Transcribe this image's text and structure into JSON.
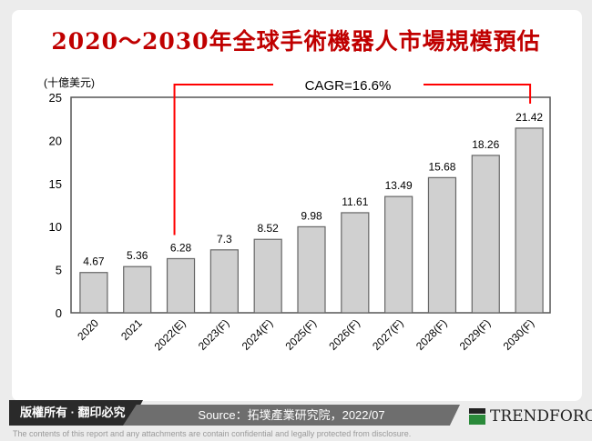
{
  "title": "2020～2030年全球手術機器人市場規模預估",
  "chart_data": {
    "type": "bar",
    "ylabel": "(十億美元)",
    "ylim": [
      0,
      25
    ],
    "yticks": [
      "0",
      "5",
      "10",
      "15",
      "20",
      "25"
    ],
    "categories": [
      "2020",
      "2021",
      "2022(E)",
      "2023(F)",
      "2024(F)",
      "2025(F)",
      "2026(F)",
      "2027(F)",
      "2028(F)",
      "2029(F)",
      "2030(F)"
    ],
    "values": [
      4.67,
      5.36,
      6.28,
      7.3,
      8.52,
      9.98,
      11.61,
      13.49,
      15.68,
      18.26,
      21.42
    ],
    "labels": [
      "4.67",
      "5.36",
      "6.28",
      "7.3",
      "8.52",
      "9.98",
      "11.61",
      "13.49",
      "15.68",
      "18.26",
      "21.42"
    ],
    "annotation": "CAGR=16.6%",
    "bar_color": "#d0d0d0",
    "annotation_color": "#ff0000"
  },
  "footer": {
    "copyright": "版權所有 · 翻印必究",
    "source": "Source：拓墣產業研究院，2022/07",
    "brand": "TRENDFORCE",
    "disclaimer": "The contents of this report and any attachments are contain confidential and legally protected from disclosure."
  }
}
